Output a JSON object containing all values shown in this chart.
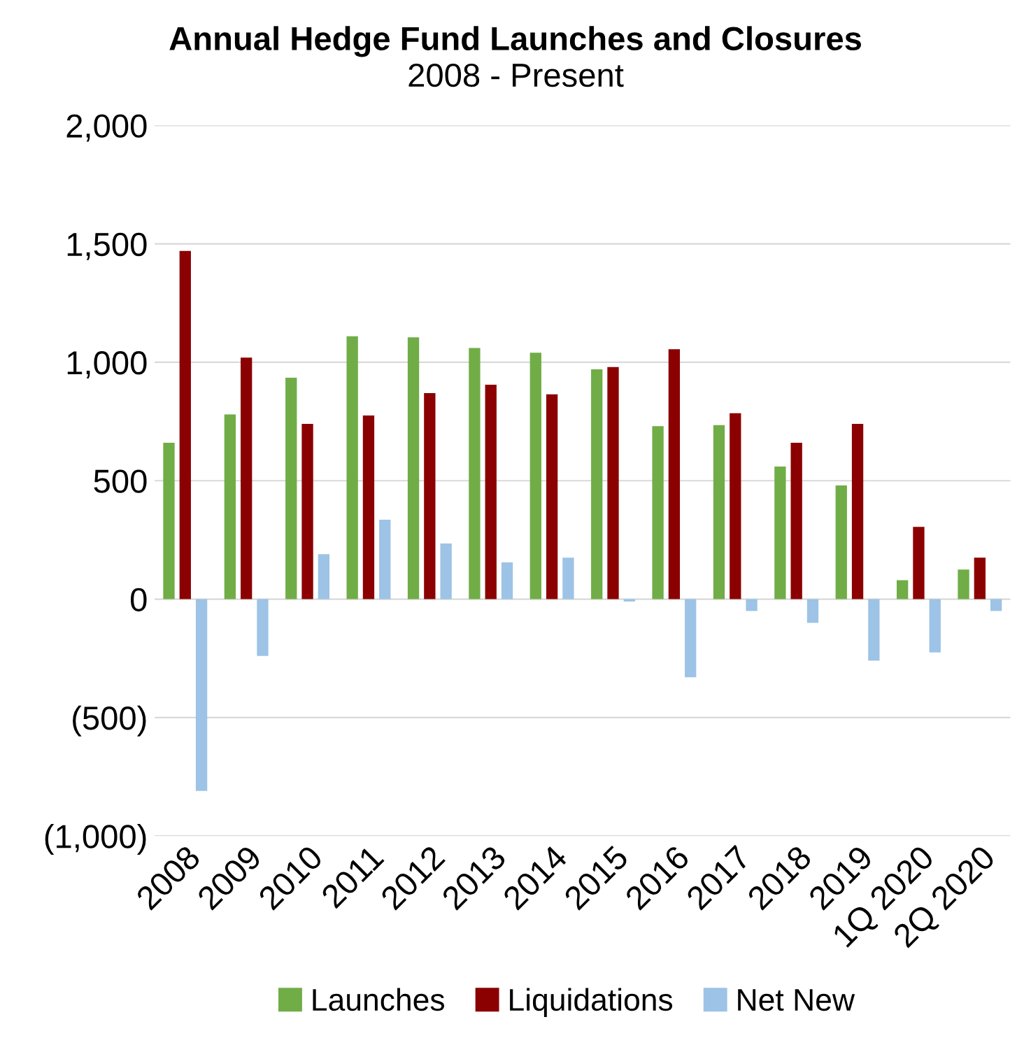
{
  "chart_data": {
    "type": "bar",
    "title": "Annual Hedge Fund Launches and Closures",
    "subtitle": "2008 - Present",
    "categories": [
      "2008",
      "2009",
      "2010",
      "2011",
      "2012",
      "2013",
      "2014",
      "2015",
      "2016",
      "2017",
      "2018",
      "2019",
      "1Q 2020",
      "2Q 2020"
    ],
    "series": [
      {
        "name": "Launches",
        "color": "#70ad47",
        "values": [
          660,
          780,
          935,
          1110,
          1105,
          1060,
          1040,
          970,
          730,
          735,
          560,
          480,
          80,
          125
        ]
      },
      {
        "name": "Liquidations",
        "color": "#8b0000",
        "values": [
          1470,
          1020,
          740,
          775,
          870,
          905,
          865,
          980,
          1055,
          785,
          660,
          740,
          305,
          175
        ]
      },
      {
        "name": "Net New",
        "color": "#9dc3e6",
        "values": [
          -810,
          -240,
          190,
          335,
          235,
          155,
          175,
          -10,
          -330,
          -50,
          -100,
          -260,
          -225,
          -50
        ]
      }
    ],
    "ylim": [
      -1000,
      2000
    ],
    "yticks": [
      {
        "value": -1000,
        "label": "(1,000)"
      },
      {
        "value": -500,
        "label": "(500)"
      },
      0,
      {
        "value": 500,
        "label": "500"
      },
      {
        "value": 1000,
        "label": "1,000"
      },
      {
        "value": 1500,
        "label": "1,500"
      },
      {
        "value": 2000,
        "label": "2,000"
      }
    ],
    "grid": "y",
    "legend": "bottom"
  }
}
